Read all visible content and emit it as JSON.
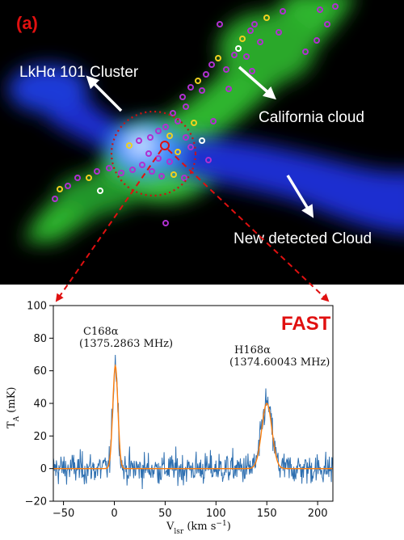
{
  "image_panel": {
    "panel_label": "(a)",
    "annotations": {
      "cluster": "LkHα 101 Cluster",
      "california": "California  cloud",
      "new_cloud": "New detected  Cloud"
    },
    "colors": {
      "background": "#000000",
      "green_emission": "#30c030",
      "blue_emission": "#1a30d0",
      "marker_magenta": "#b030d0",
      "marker_yellow": "#f0d020",
      "marker_white": "#ffffff",
      "circle_red": "#d01010"
    }
  },
  "spectrum_panel": {
    "instrument_label": "FAST",
    "lines": [
      {
        "name": "C168α",
        "freq": "(1375.2863 MHz)"
      },
      {
        "name": "H168α",
        "freq": "(1374.60043 MHz)"
      }
    ],
    "xlabel_main": "V",
    "xlabel_sub": "lsr",
    "xlabel_units": " (km s",
    "xlabel_exp": "−1",
    "xlabel_close": ")",
    "ylabel_main": "T",
    "ylabel_sub": "A",
    "ylabel_units": " (mK)"
  },
  "chart_data": {
    "type": "line",
    "xlim": [
      -60,
      215
    ],
    "ylim": [
      -20,
      100
    ],
    "xticks": [
      -50,
      0,
      50,
      100,
      150,
      200
    ],
    "yticks": [
      -20,
      0,
      20,
      40,
      60,
      80,
      100
    ],
    "xtick_labels": [
      "−50",
      "0",
      "50",
      "100",
      "150",
      "200"
    ],
    "ytick_labels": [
      "−20",
      "0",
      "20",
      "40",
      "60",
      "80",
      "100"
    ],
    "grid": false,
    "series": [
      {
        "style": "noisy-spectrum",
        "color": "#2e6fb0",
        "noise_rms": 7,
        "peaks": [
          {
            "center": 1,
            "amplitude": 65,
            "width": 2.5
          },
          {
            "center": 150,
            "amplitude": 40,
            "width": 5
          }
        ]
      },
      {
        "style": "gaussian-fit",
        "color": "#ff7f0e",
        "peaks": [
          {
            "center": 1,
            "amplitude": 63,
            "width": 2.5
          },
          {
            "center": 150,
            "amplitude": 40,
            "width": 5
          }
        ]
      }
    ]
  }
}
